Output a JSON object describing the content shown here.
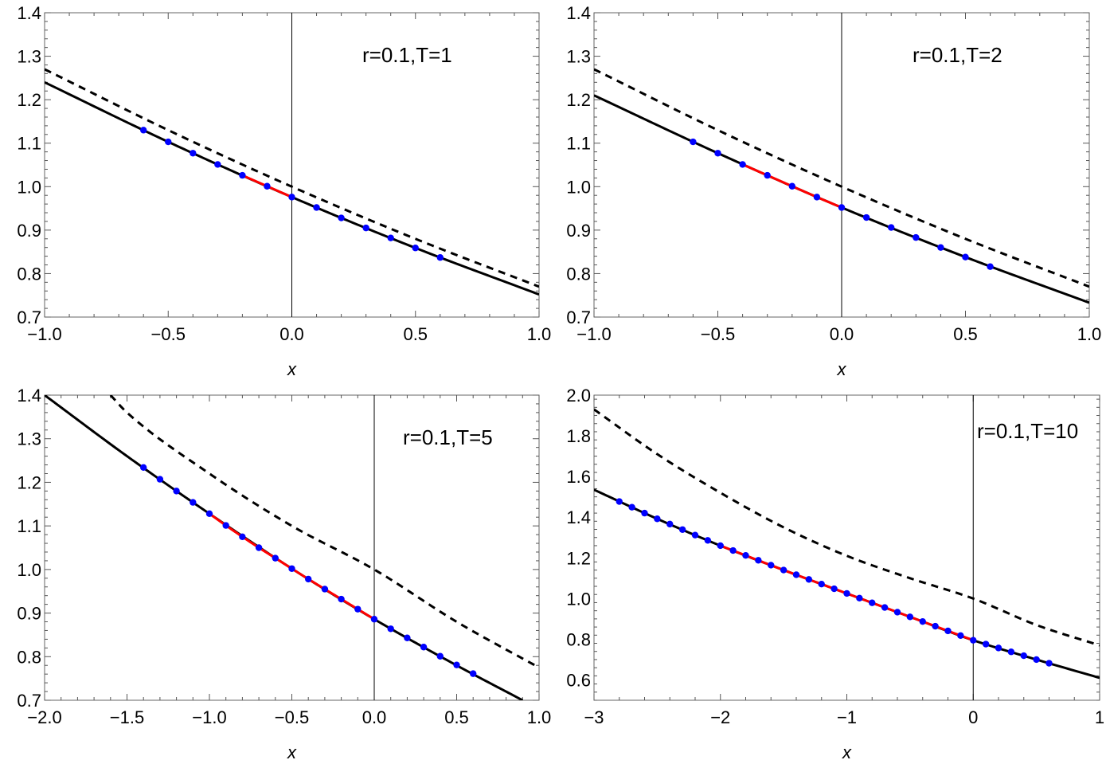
{
  "chart_data": [
    {
      "type": "line",
      "title": "",
      "annotation": "r=0.1,T=1",
      "xlabel": "x",
      "ylabel": "",
      "xlim": [
        -1.0,
        1.0
      ],
      "ylim": [
        0.7,
        1.4
      ],
      "xticks": [
        "−1.0",
        "−0.5",
        "0.0",
        "0.5",
        "1.0"
      ],
      "xtick_values": [
        -1.0,
        -0.5,
        0.0,
        0.5,
        1.0
      ],
      "yticks": [
        "0.7",
        "0.8",
        "0.9",
        "1.0",
        "1.1",
        "1.2",
        "1.3",
        "1.4"
      ],
      "ytick_values": [
        0.7,
        0.8,
        0.9,
        1.0,
        1.1,
        1.2,
        1.3,
        1.4
      ],
      "series": [
        {
          "style": "dashed",
          "color": "#000000",
          "x": [
            -1.0,
            -0.5,
            0.0,
            0.5,
            1.0
          ],
          "y": [
            1.27,
            1.13,
            1.0,
            0.88,
            0.77
          ]
        },
        {
          "style": "solid",
          "color": "#000000",
          "x": [
            -1.0,
            -0.5,
            0.0,
            0.5,
            1.0
          ],
          "y": [
            1.24,
            1.103,
            0.976,
            0.859,
            0.752
          ]
        },
        {
          "style": "solid",
          "color": "#ff0000",
          "x": [
            -0.2,
            -0.1,
            0.0
          ],
          "y": [
            1.026,
            1.001,
            0.976
          ]
        },
        {
          "style": "points",
          "color": "#0000ff",
          "x": [
            -0.6,
            -0.5,
            -0.4,
            -0.3,
            -0.2,
            -0.1,
            0.0,
            0.1,
            0.2,
            0.3,
            0.4,
            0.5,
            0.6
          ],
          "y": [
            1.13,
            1.103,
            1.077,
            1.051,
            1.026,
            1.001,
            0.976,
            0.952,
            0.928,
            0.905,
            0.882,
            0.859,
            0.837
          ]
        }
      ]
    },
    {
      "type": "line",
      "title": "",
      "annotation": "r=0.1,T=2",
      "xlabel": "x",
      "ylabel": "",
      "xlim": [
        -1.0,
        1.0
      ],
      "ylim": [
        0.7,
        1.4
      ],
      "xticks": [
        "−1.0",
        "−0.5",
        "0.0",
        "0.5",
        "1.0"
      ],
      "xtick_values": [
        -1.0,
        -0.5,
        0.0,
        0.5,
        1.0
      ],
      "yticks": [
        "0.7",
        "0.8",
        "0.9",
        "1.0",
        "1.1",
        "1.2",
        "1.3",
        "1.4"
      ],
      "ytick_values": [
        0.7,
        0.8,
        0.9,
        1.0,
        1.1,
        1.2,
        1.3,
        1.4
      ],
      "series": [
        {
          "style": "dashed",
          "color": "#000000",
          "x": [
            -1.0,
            -0.5,
            0.0,
            0.5,
            1.0
          ],
          "y": [
            1.27,
            1.13,
            1.0,
            0.88,
            0.77
          ]
        },
        {
          "style": "solid",
          "color": "#000000",
          "x": [
            -1.0,
            -0.5,
            0.0,
            0.5,
            1.0
          ],
          "y": [
            1.21,
            1.077,
            0.952,
            0.838,
            0.733
          ]
        },
        {
          "style": "solid",
          "color": "#ff0000",
          "x": [
            -0.4,
            -0.3,
            -0.2,
            -0.1,
            0.0
          ],
          "y": [
            1.051,
            1.026,
            1.001,
            0.976,
            0.952
          ]
        },
        {
          "style": "points",
          "color": "#0000ff",
          "x": [
            -0.6,
            -0.5,
            -0.4,
            -0.3,
            -0.2,
            -0.1,
            0.0,
            0.1,
            0.2,
            0.3,
            0.4,
            0.5,
            0.6
          ],
          "y": [
            1.103,
            1.077,
            1.051,
            1.026,
            1.001,
            0.976,
            0.952,
            0.929,
            0.906,
            0.883,
            0.86,
            0.838,
            0.816
          ]
        }
      ]
    },
    {
      "type": "line",
      "title": "",
      "annotation": "r=0.1,T=5",
      "xlabel": "x",
      "ylabel": "",
      "xlim": [
        -2.0,
        1.0
      ],
      "ylim": [
        0.7,
        1.4
      ],
      "xticks": [
        "−2.0",
        "−1.5",
        "−1.0",
        "−0.5",
        "0.0",
        "0.5",
        "1.0"
      ],
      "xtick_values": [
        -2.0,
        -1.5,
        -1.0,
        -0.5,
        0.0,
        0.5,
        1.0
      ],
      "yticks": [
        "0.7",
        "0.8",
        "0.9",
        "1.0",
        "1.1",
        "1.2",
        "1.3",
        "1.4"
      ],
      "ytick_values": [
        0.7,
        0.8,
        0.9,
        1.0,
        1.1,
        1.2,
        1.3,
        1.4
      ],
      "series": [
        {
          "style": "dashed",
          "color": "#000000",
          "x": [
            -1.6,
            -1.5,
            -1.0,
            -0.5,
            0.0,
            0.5,
            1.0
          ],
          "y": [
            1.4,
            1.36,
            1.22,
            1.1,
            1.0,
            0.88,
            0.775
          ]
        },
        {
          "style": "solid",
          "color": "#000000",
          "x": [
            -2.0,
            -1.5,
            -1.0,
            -0.5,
            0.0,
            0.5,
            0.9
          ],
          "y": [
            1.4,
            1.26,
            1.128,
            1.002,
            0.886,
            0.78,
            0.7
          ]
        },
        {
          "style": "solid",
          "color": "#ff0000",
          "x": [
            -1.0,
            -0.9,
            -0.8,
            -0.7,
            -0.6,
            -0.5,
            -0.4,
            -0.3,
            -0.2,
            -0.1,
            0.0
          ],
          "y": [
            1.128,
            1.101,
            1.075,
            1.05,
            1.026,
            1.002,
            0.978,
            0.955,
            0.932,
            0.909,
            0.886
          ]
        },
        {
          "style": "points",
          "color": "#0000ff",
          "x": [
            -1.4,
            -1.3,
            -1.2,
            -1.1,
            -1.0,
            -0.9,
            -0.8,
            -0.7,
            -0.6,
            -0.5,
            -0.4,
            -0.3,
            -0.2,
            -0.1,
            0.0,
            0.1,
            0.2,
            0.3,
            0.4,
            0.5,
            0.6
          ],
          "y": [
            1.234,
            1.207,
            1.18,
            1.154,
            1.128,
            1.101,
            1.075,
            1.05,
            1.026,
            1.002,
            0.978,
            0.955,
            0.932,
            0.909,
            0.886,
            0.864,
            0.843,
            0.822,
            0.801,
            0.781,
            0.761
          ]
        }
      ]
    },
    {
      "type": "line",
      "title": "",
      "annotation": "r=0.1,T=10",
      "xlabel": "x",
      "ylabel": "",
      "xlim": [
        -3,
        1
      ],
      "ylim": [
        0.5,
        2.0
      ],
      "xticks": [
        "−3",
        "−2",
        "−1",
        "0",
        "1"
      ],
      "xtick_values": [
        -3,
        -2,
        -1,
        0,
        1
      ],
      "yticks": [
        "0.6",
        "0.8",
        "1.0",
        "1.2",
        "1.4",
        "1.6",
        "1.8",
        "2.0"
      ],
      "ytick_values": [
        0.6,
        0.8,
        1.0,
        1.2,
        1.4,
        1.6,
        1.8,
        2.0
      ],
      "series": [
        {
          "style": "dashed",
          "color": "#000000",
          "x": [
            -3.0,
            -2.5,
            -2.0,
            -1.5,
            -1.0,
            -0.5,
            0.0,
            0.5,
            1.0
          ],
          "y": [
            1.93,
            1.71,
            1.52,
            1.35,
            1.21,
            1.1,
            1.0,
            0.87,
            0.77
          ]
        },
        {
          "style": "solid",
          "color": "#000000",
          "x": [
            -3.0,
            -2.5,
            -2.0,
            -1.5,
            -1.0,
            -0.5,
            0.0,
            0.5,
            1.0
          ],
          "y": [
            1.535,
            1.392,
            1.26,
            1.14,
            1.025,
            0.91,
            0.795,
            0.7,
            0.61
          ]
        },
        {
          "style": "solid",
          "color": "#ff0000",
          "x": [
            -2.0,
            -1.5,
            -1.0,
            -0.5,
            0.0
          ],
          "y": [
            1.26,
            1.14,
            1.025,
            0.91,
            0.795
          ]
        },
        {
          "style": "points",
          "color": "#0000ff",
          "x": [
            -2.8,
            -2.7,
            -2.6,
            -2.5,
            -2.4,
            -2.3,
            -2.2,
            -2.1,
            -2.0,
            -1.9,
            -1.8,
            -1.7,
            -1.6,
            -1.5,
            -1.4,
            -1.3,
            -1.2,
            -1.1,
            -1.0,
            -0.9,
            -0.8,
            -0.7,
            -0.6,
            -0.5,
            -0.4,
            -0.3,
            -0.2,
            -0.1,
            0.0,
            0.1,
            0.2,
            0.3,
            0.4,
            0.5,
            0.6
          ],
          "y": [
            1.477,
            1.449,
            1.42,
            1.392,
            1.366,
            1.339,
            1.312,
            1.286,
            1.26,
            1.236,
            1.212,
            1.188,
            1.164,
            1.14,
            1.117,
            1.094,
            1.071,
            1.048,
            1.025,
            1.002,
            0.979,
            0.956,
            0.933,
            0.91,
            0.887,
            0.864,
            0.841,
            0.818,
            0.795,
            0.776,
            0.757,
            0.738,
            0.719,
            0.7,
            0.682
          ]
        }
      ]
    }
  ]
}
